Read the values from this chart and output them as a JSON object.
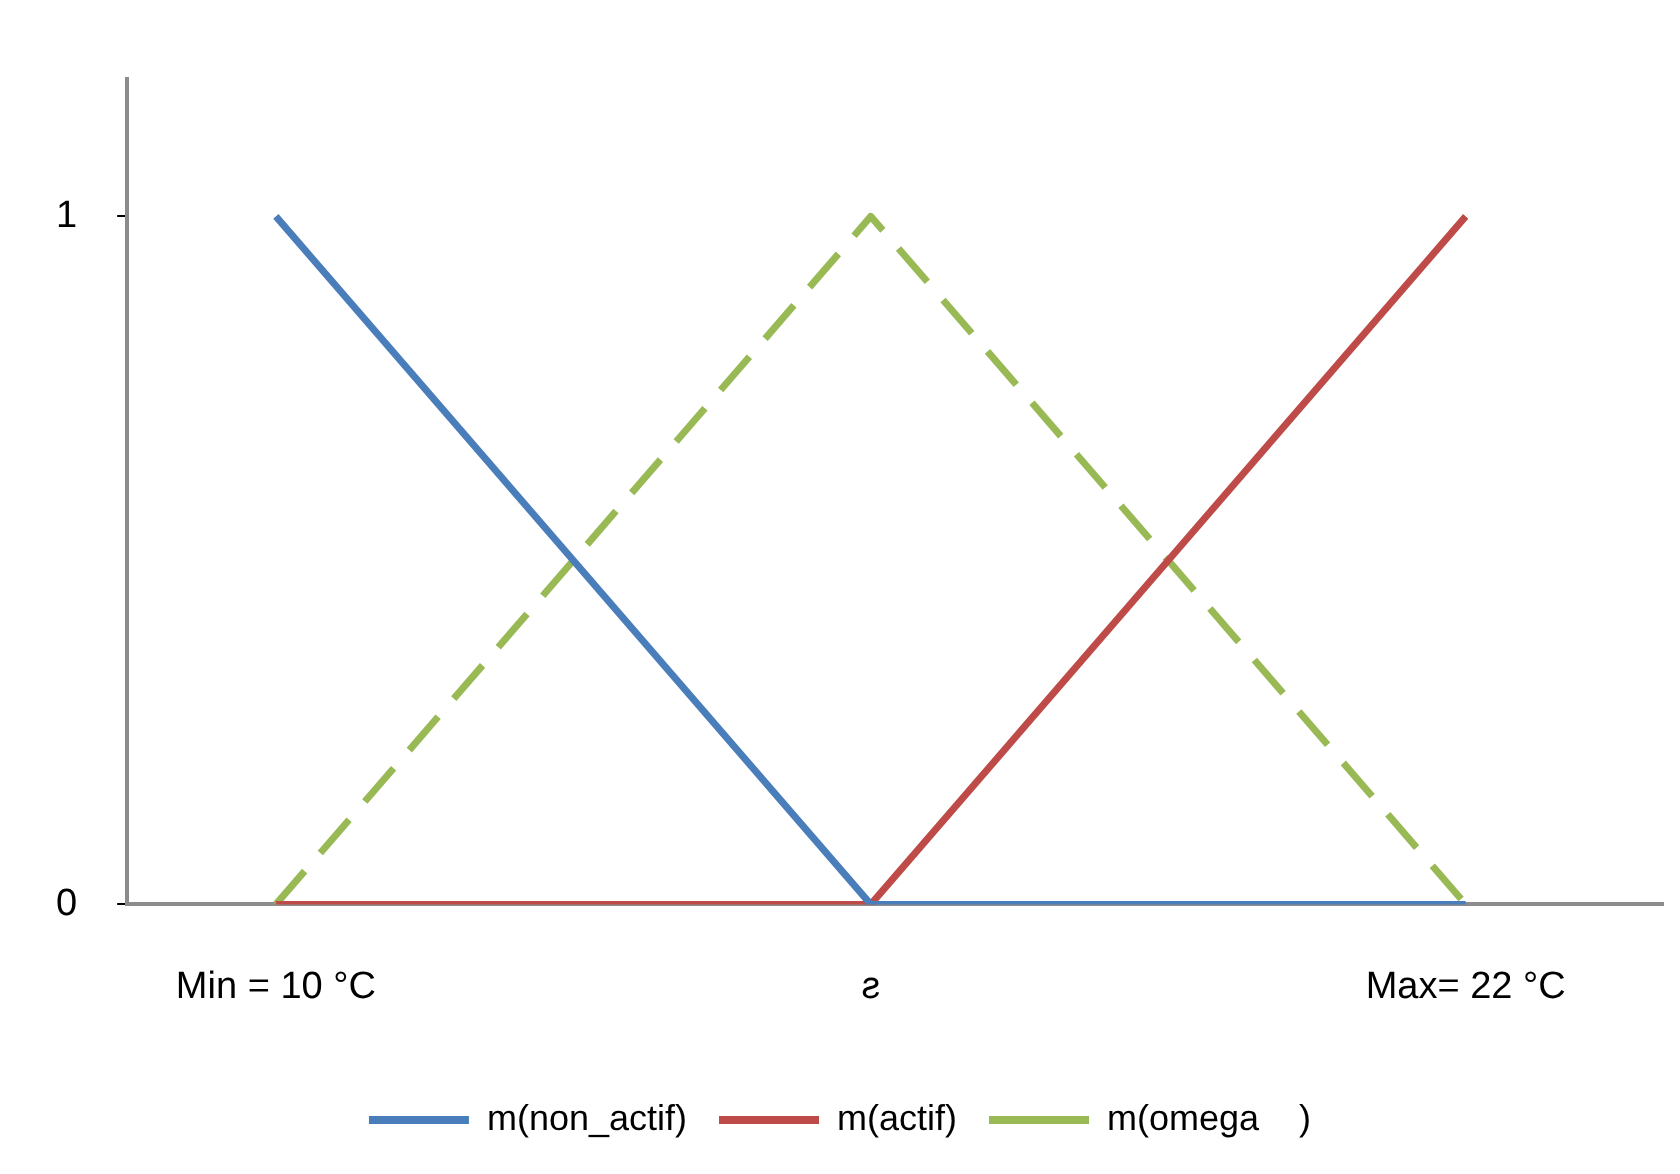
{
  "chart_data": {
    "type": "line",
    "xlim": [
      8.5,
      24
    ],
    "xticks": [
      {
        "value": 10,
        "label": "Min = 10 °C"
      },
      {
        "value": 16,
        "label": "ƨ"
      },
      {
        "value": 22,
        "label": "Max= 22 °C"
      }
    ],
    "ylim": [
      0,
      1.2
    ],
    "yticks": [
      0,
      1
    ],
    "grid": false,
    "legend": "bottom",
    "marker": "none",
    "series": [
      {
        "name": "m(non_actif)",
        "color": "#4a7ebb",
        "x": [
          10,
          16,
          22
        ],
        "values": [
          1,
          0,
          0
        ]
      },
      {
        "name": "m(actif)",
        "color": "#be4b48",
        "x": [
          10,
          16,
          22
        ],
        "values": [
          0,
          0,
          1
        ]
      },
      {
        "name": "m(omega    )",
        "color": "#98b954",
        "x": [
          10,
          16,
          22
        ],
        "values": [
          0,
          1,
          0
        ],
        "line_style": "dashed"
      }
    ]
  }
}
